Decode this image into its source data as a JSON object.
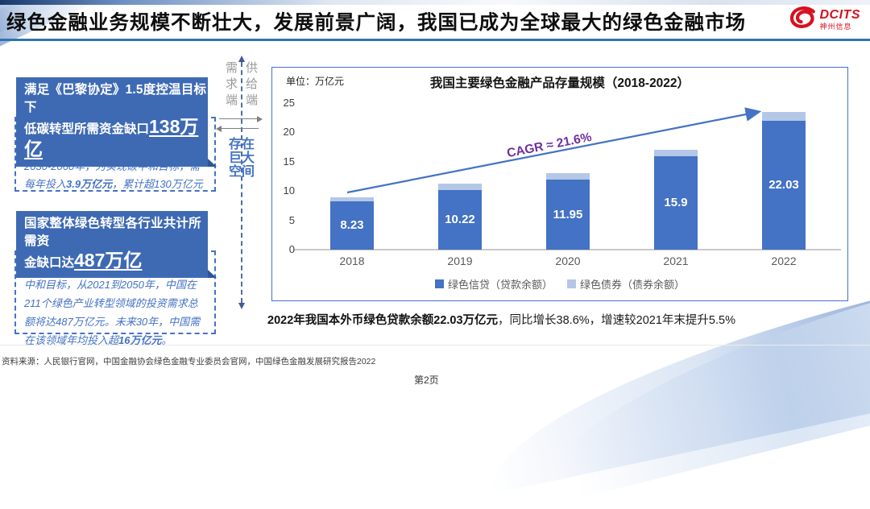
{
  "header": {
    "title": "绿色金融业务规模不断壮大，发展前景广阔，我国已成为全球最大的绿色金融市场",
    "logo": {
      "brand": "DCITS",
      "sub": "神州信息",
      "color": "#d8101f"
    }
  },
  "left_panel": {
    "box1": {
      "heading_line1": "满足《巴黎协定》1.5度控温目标下",
      "heading_line2_prefix": "低碳转型所需资金缺口",
      "heading_line2_highlight": "138万亿",
      "body_segments": [
        {
          "text": "人民银行行长易纲发言，预计2030年前，中国碳减排需每年投入2.2万亿元；2030-2060年，为实现碳中和目标，需每年投入",
          "bold": false
        },
        {
          "text": "3.9万亿元",
          "bold": true
        },
        {
          "text": "，累计超130万亿元",
          "bold": false
        }
      ]
    },
    "box2": {
      "heading_line1": "国家整体绿色转型各行业共计所需资",
      "heading_line2_prefix": "金缺口达",
      "heading_line2_highlight": "487万亿",
      "body_segments": [
        {
          "text": "据中国绿色金融委员会估算，为实现碳中和目标，从2021到2050年，中国在211个绿色产业转型领域的投资需求总额将达487万亿元。未来30年，中国需在该领域年均投入超",
          "bold": false
        },
        {
          "text": "16万亿元",
          "bold": true
        },
        {
          "text": "。",
          "bold": false
        }
      ]
    }
  },
  "middle": {
    "demand_label": "需求端",
    "supply_label": "供给端",
    "gap_lines": [
      "存在",
      "巨大",
      "空间"
    ]
  },
  "chart_data": {
    "type": "bar",
    "stacked": true,
    "title": "我国主要绿色金融产品存量规模（2018-2022）",
    "unit_label": "单位：万亿元",
    "categories": [
      "2018",
      "2019",
      "2020",
      "2021",
      "2022"
    ],
    "series": [
      {
        "name": "绿色信贷（贷款余额）",
        "color": "#4472c4",
        "values": [
          8.23,
          10.22,
          11.95,
          15.9,
          22.03
        ],
        "labels": [
          "8.23",
          "10.22",
          "11.95",
          "15.9",
          "22.03"
        ]
      },
      {
        "name": "绿色债券（债券余额）",
        "color": "#b4c7e7",
        "values": [
          0.7,
          1.0,
          1.1,
          1.1,
          1.5
        ]
      }
    ],
    "ylim": [
      0,
      25
    ],
    "yticks": [
      0,
      5,
      10,
      15,
      20,
      25
    ],
    "grid": false,
    "legend_position": "bottom",
    "annotation": {
      "text": "CAGR ≈ 21.6%",
      "color": "#7030A0"
    }
  },
  "summary": {
    "segments": [
      {
        "text": "2022年我国本外币绿色贷款余额22.03万亿元",
        "bold": true
      },
      {
        "text": "，同比增长38.6%，增速较2021年末提升5.5%",
        "bold": false
      }
    ]
  },
  "footer": {
    "source": "资料来源：人民银行官网，中国金融协会绿色金融专业委员会官网，中国绿色金融发展研究报告2022",
    "page": "第2页"
  }
}
